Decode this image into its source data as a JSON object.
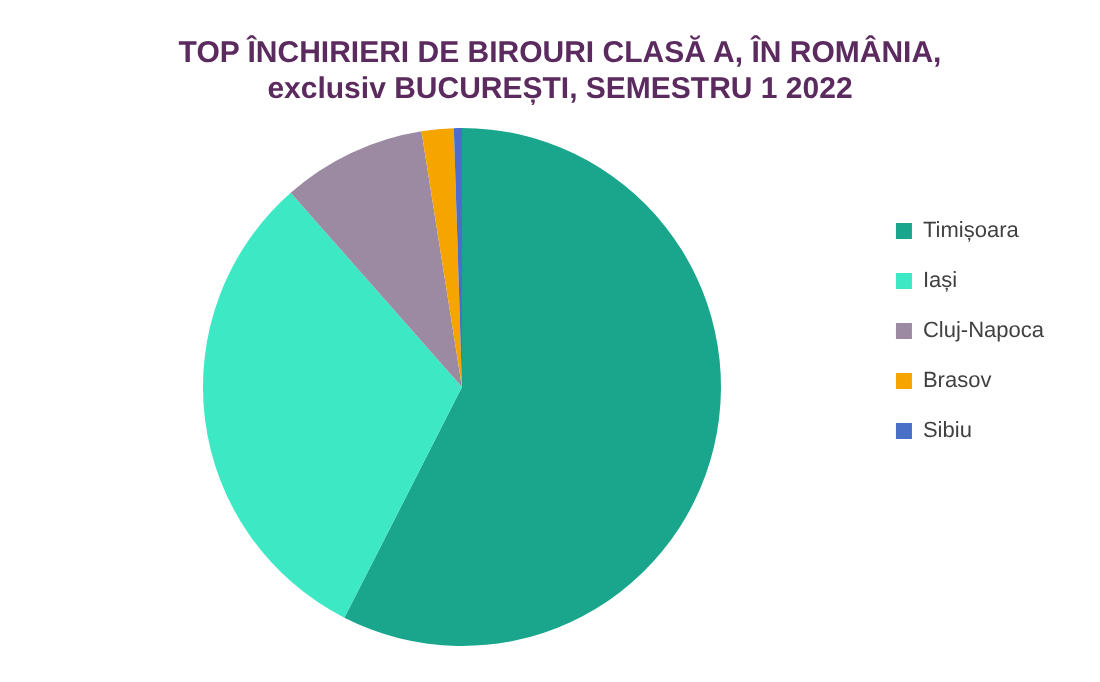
{
  "chart_data": {
    "type": "pie",
    "title": "TOP ÎNCHIRIERI DE BIROURI CLASĂ A, ÎN ROMÂNIA, exclusiv BUCUREȘTI, SEMESTRU 1 2022",
    "categories": [
      "Timișoara",
      "Iași",
      "Cluj-Napoca",
      "Brasov",
      "Sibiu"
    ],
    "values": [
      57.5,
      31,
      9,
      2,
      0.5
    ],
    "colors": [
      "#1aa68c",
      "#3de8c4",
      "#9c8aa3",
      "#f5a400",
      "#4a6fc7"
    ],
    "legend": "right"
  }
}
